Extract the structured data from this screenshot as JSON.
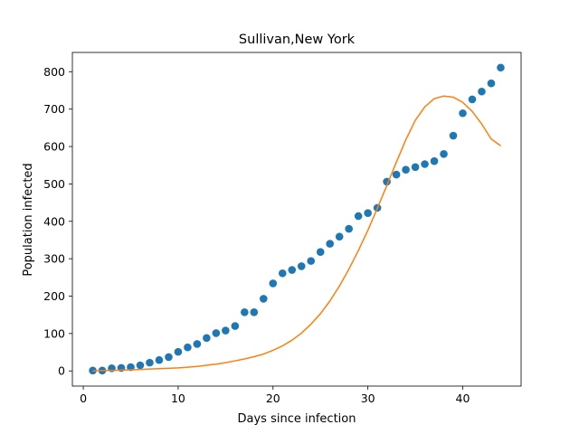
{
  "chart_data": {
    "type": "scatter",
    "title": "Sullivan,New York",
    "xlabel": "Days since infection",
    "ylabel": "Population infected",
    "xlim": [
      -1.15,
      46.15
    ],
    "ylim": [
      -40.55,
      851.55
    ],
    "xticks": [
      0,
      10,
      20,
      30,
      40
    ],
    "yticks": [
      0,
      100,
      200,
      300,
      400,
      500,
      600,
      700,
      800
    ],
    "grid": false,
    "series": [
      {
        "kind": "scatter",
        "color": "#1f77b4",
        "x": [
          1,
          2,
          3,
          4,
          5,
          6,
          7,
          8,
          9,
          10,
          11,
          12,
          13,
          14,
          15,
          16,
          17,
          18,
          19,
          20,
          21,
          22,
          23,
          24,
          25,
          26,
          27,
          28,
          29,
          30,
          31,
          32,
          33,
          34,
          35,
          36,
          37,
          38,
          39,
          40,
          41,
          42,
          43,
          44
        ],
        "y": [
          1,
          1,
          7,
          8,
          10,
          15,
          22,
          29,
          37,
          51,
          63,
          72,
          88,
          101,
          108,
          120,
          157,
          157,
          193,
          234,
          261,
          270,
          280,
          294,
          318,
          340,
          359,
          380,
          414,
          422,
          436,
          506,
          525,
          538,
          545,
          553,
          561,
          580,
          629,
          689,
          726,
          747,
          769,
          811
        ]
      },
      {
        "kind": "line",
        "color": "#ff7f0e",
        "x": [
          1,
          2,
          3,
          4,
          5,
          6,
          7,
          8,
          9,
          10,
          11,
          12,
          13,
          14,
          15,
          16,
          17,
          18,
          19,
          20,
          21,
          22,
          23,
          24,
          25,
          26,
          27,
          28,
          29,
          30,
          31,
          32,
          33,
          34,
          35,
          36,
          37,
          38,
          39,
          40,
          41,
          42,
          43,
          44
        ],
        "y": [
          0,
          1,
          1,
          2,
          3,
          4,
          5,
          6,
          7,
          8,
          10,
          12,
          15,
          18,
          22,
          27,
          32,
          38,
          45,
          55,
          67,
          82,
          101,
          125,
          153,
          187,
          227,
          272,
          322,
          376,
          435,
          496,
          558,
          618,
          670,
          706,
          728,
          735,
          732,
          718,
          694,
          660,
          620,
          602
        ]
      }
    ]
  }
}
